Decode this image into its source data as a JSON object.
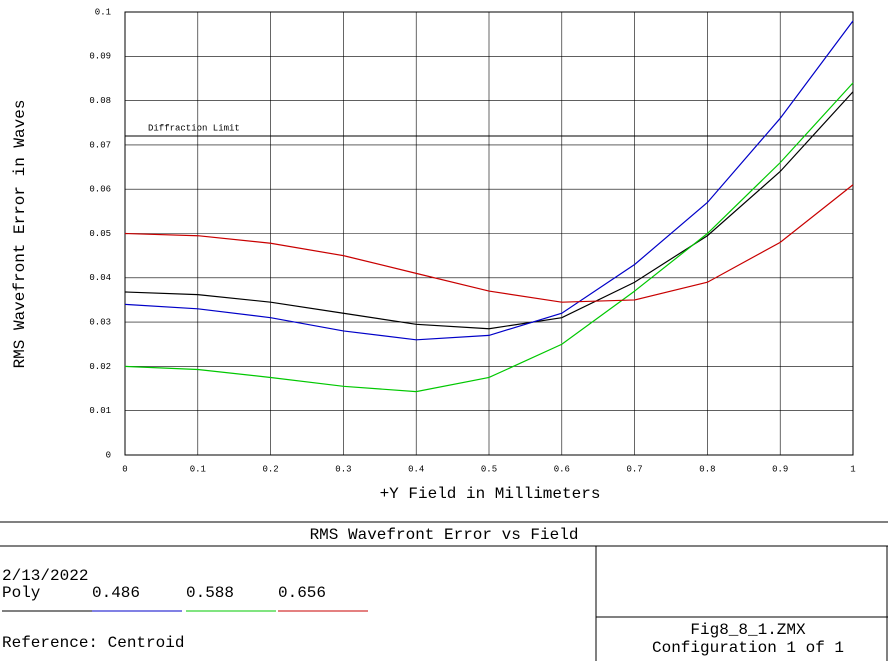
{
  "chart_data": {
    "type": "line",
    "title": "RMS Wavefront Error vs Field",
    "xlabel": "+Y Field in Millimeters",
    "ylabel": "RMS Wavefront Error in Waves",
    "x": [
      0,
      0.1,
      0.2,
      0.3,
      0.4,
      0.5,
      0.6,
      0.7,
      0.8,
      0.9,
      1
    ],
    "series": [
      {
        "name": "Poly",
        "color": "#000000",
        "values": [
          0.0368,
          0.0362,
          0.0345,
          0.032,
          0.0295,
          0.0285,
          0.031,
          0.039,
          0.0495,
          0.064,
          0.082
        ]
      },
      {
        "name": "0.486",
        "color": "#0000c8",
        "values": [
          0.034,
          0.033,
          0.031,
          0.028,
          0.026,
          0.027,
          0.032,
          0.043,
          0.057,
          0.076,
          0.098
        ]
      },
      {
        "name": "0.588",
        "color": "#00c800",
        "values": [
          0.02,
          0.0193,
          0.0175,
          0.0155,
          0.0143,
          0.0175,
          0.025,
          0.037,
          0.05,
          0.066,
          0.084
        ]
      },
      {
        "name": "0.656",
        "color": "#c80000",
        "values": [
          0.05,
          0.0495,
          0.0478,
          0.045,
          0.041,
          0.037,
          0.0345,
          0.035,
          0.039,
          0.048,
          0.061
        ]
      }
    ],
    "reference_lines": [
      {
        "label": "Diffraction Limit",
        "value": 0.072
      }
    ],
    "xlim": [
      0,
      1
    ],
    "ylim": [
      0,
      0.1
    ],
    "xticks": [
      0,
      0.1,
      0.2,
      0.3,
      0.4,
      0.5,
      0.6,
      0.7,
      0.8,
      0.9,
      1
    ],
    "yticks": [
      0,
      0.01,
      0.02,
      0.03,
      0.04,
      0.05,
      0.06,
      0.07,
      0.08,
      0.09,
      0.1
    ],
    "grid": true
  },
  "footer": {
    "date": "2/13/2022",
    "reference": "Reference: Centroid",
    "file": "Fig8_8_1.ZMX",
    "configuration": "Configuration 1 of 1"
  }
}
